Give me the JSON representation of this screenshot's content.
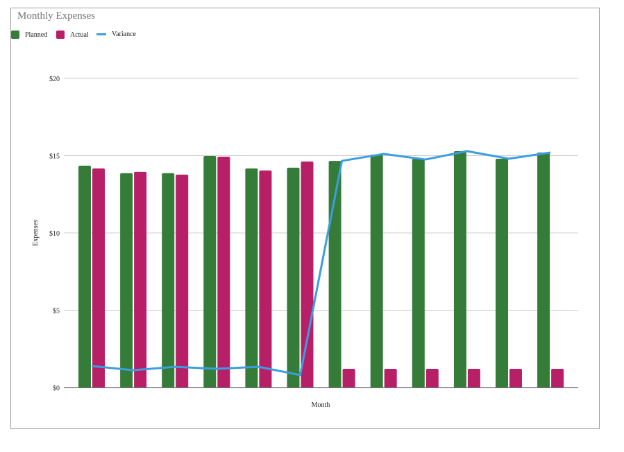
{
  "chart_data": {
    "type": "bar",
    "title": "Monthly Expenses",
    "xlabel": "Month",
    "ylabel": "Expenses",
    "ylim": [
      0,
      20
    ],
    "yticks": [
      "$0",
      "$5",
      "$10",
      "$15",
      "$20"
    ],
    "ytick_values": [
      0,
      5,
      10,
      15,
      20
    ],
    "grid": true,
    "legend": "top-left",
    "series": [
      {
        "name": "Planned",
        "type": "bar",
        "color": "#367c39",
        "values": [
          14.35,
          13.86,
          13.86,
          14.98,
          14.17,
          14.22,
          14.66,
          15.07,
          14.8,
          15.29,
          14.8,
          15.2
        ]
      },
      {
        "name": "Actual",
        "type": "bar",
        "color": "#b71f67",
        "values": [
          14.17,
          13.95,
          13.77,
          14.93,
          14.04,
          14.62,
          1.21,
          1.21,
          1.21,
          1.21,
          1.21,
          1.21
        ]
      },
      {
        "name": "Variance",
        "type": "line",
        "color": "#3a9ee0",
        "values": [
          1.39,
          1.12,
          1.34,
          1.21,
          1.34,
          0.81,
          14.66,
          15.11,
          14.75,
          15.29,
          14.8,
          15.2
        ]
      }
    ]
  }
}
